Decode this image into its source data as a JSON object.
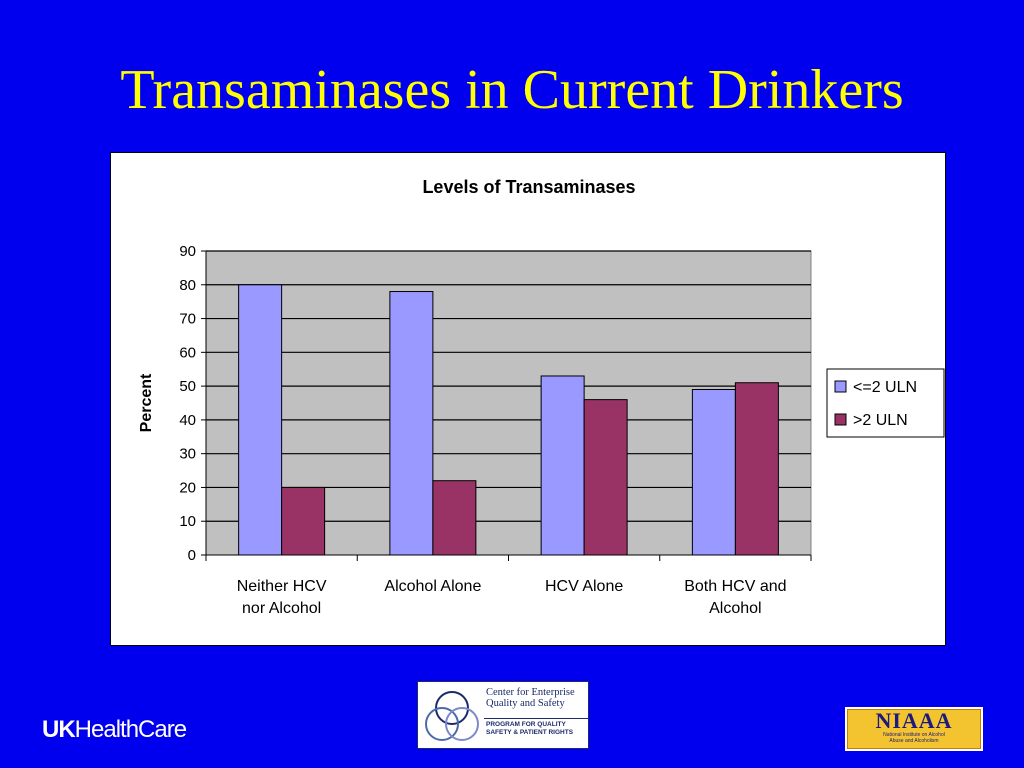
{
  "slide": {
    "title": "Transaminases in Current Drinkers"
  },
  "chart_data": {
    "type": "bar",
    "title": "Levels of Transaminases",
    "xlabel": "",
    "ylabel": "Percent",
    "ylim": [
      0,
      90
    ],
    "yticks": [
      0,
      10,
      20,
      30,
      40,
      50,
      60,
      70,
      80,
      90
    ],
    "grid": true,
    "legend_position": "right",
    "categories": [
      [
        "Neither HCV",
        "nor Alcohol"
      ],
      [
        "Alcohol Alone"
      ],
      [
        "HCV Alone"
      ],
      [
        "Both HCV and",
        "Alcohol"
      ]
    ],
    "series": [
      {
        "name": "<=2 ULN",
        "values": [
          80,
          78,
          53,
          49
        ],
        "color": "#9999ff"
      },
      {
        "name": ">2 ULN",
        "values": [
          20,
          22,
          46,
          51
        ],
        "color": "#993366"
      }
    ]
  },
  "logos": {
    "uk_bold": "UK",
    "uk_rest": "HealthCare",
    "ceqs_line1": "Center for Enterprise",
    "ceqs_line2": "Quality and Safety",
    "ceqs_line3": "PROGRAM FOR QUALITY",
    "ceqs_line4": "SAFETY & PATIENT RIGHTS",
    "niaaa_big": "NIAAA",
    "niaaa_small1": "National Institute on Alcohol",
    "niaaa_small2": "Abuse and Alcoholism"
  },
  "colors": {
    "background": "#0000ee",
    "title": "#ffff00",
    "plot_area": "#c0c0c0"
  }
}
